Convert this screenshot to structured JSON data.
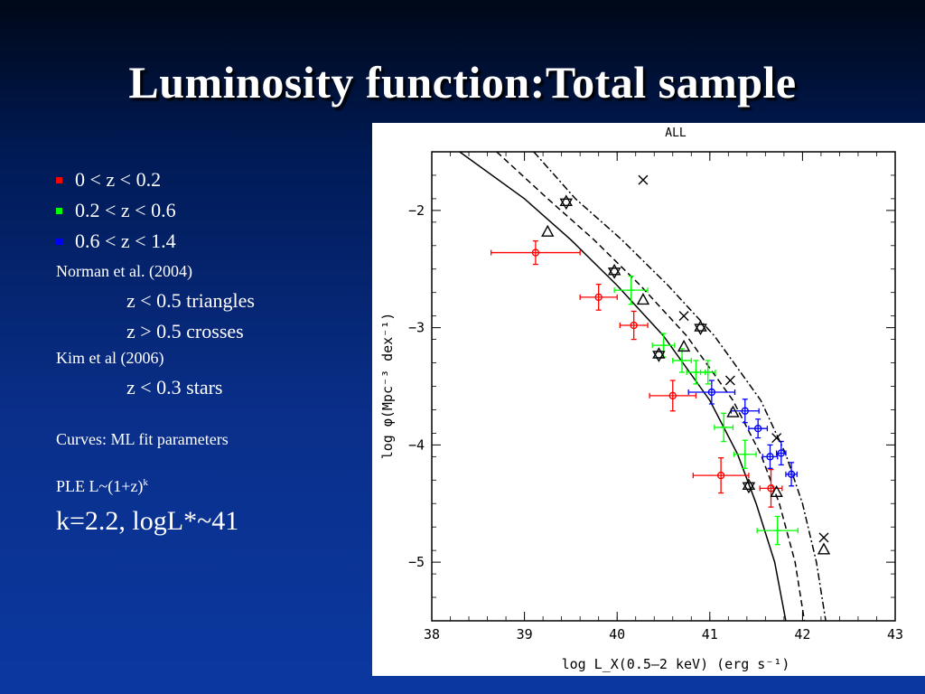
{
  "slide": {
    "title": "Luminosity function:Total sample",
    "bullets": [
      {
        "label": "0 < z < 0.2",
        "color": "#ff0000"
      },
      {
        "label": "0.2 < z < 0.6",
        "color": "#00ff00"
      },
      {
        "label": "0.6 < z < 1.4",
        "color": "#0000ff"
      }
    ],
    "norman_ref": "Norman et al.  (2004)",
    "norman_triangles": "z < 0.5 triangles",
    "norman_crosses": "z > 0.5 crosses",
    "kim_ref": "Kim et al (2006)",
    "kim_stars": "z < 0.3 stars",
    "curves_note": "Curves: ML fit parameters",
    "ple_label": "PLE  L~(1+z)",
    "ple_exponent": "k",
    "fit_result": "k=2.2, logL*~41"
  },
  "chart_data": {
    "type": "scatter",
    "title": "ALL",
    "xlabel": "log L_X(0.5–2 keV) (erg s⁻¹)",
    "ylabel": "log φ(Mpc⁻³ dex⁻¹)",
    "xlim": [
      38,
      43
    ],
    "ylim": [
      -5.5,
      -1.5
    ],
    "x_ticks": [
      "38",
      "39",
      "40",
      "41",
      "42",
      "43"
    ],
    "y_ticks": [
      "−2",
      "−3",
      "−4",
      "−5"
    ],
    "y_tick_values": [
      -2,
      -3,
      -4,
      -5
    ],
    "x_tick_values": [
      38,
      39,
      40,
      41,
      42,
      43
    ],
    "colors": {
      "low_z": "#ff0000",
      "mid_z": "#00ff00",
      "high_z": "#0000ff",
      "ref": "#000000"
    },
    "series": [
      {
        "name": "0 < z < 0.2",
        "color": "#ff0000",
        "marker": "circle",
        "points": [
          {
            "x": 39.12,
            "y": -2.36,
            "xerr": 0.48,
            "yerr": 0.1
          },
          {
            "x": 39.8,
            "y": -2.74,
            "xerr": 0.2,
            "yerr": 0.11
          },
          {
            "x": 40.18,
            "y": -2.98,
            "xerr": 0.15,
            "yerr": 0.12
          },
          {
            "x": 40.6,
            "y": -3.58,
            "xerr": 0.25,
            "yerr": 0.13
          },
          {
            "x": 41.12,
            "y": -4.26,
            "xerr": 0.3,
            "yerr": 0.15
          },
          {
            "x": 41.66,
            "y": -4.37,
            "xerr": 0.12,
            "yerr": 0.16
          }
        ]
      },
      {
        "name": "0.2 < z < 0.6",
        "color": "#00ff00",
        "marker": "cross",
        "points": [
          {
            "x": 40.15,
            "y": -2.68,
            "xerr": 0.18,
            "yerr": 0.12
          },
          {
            "x": 40.5,
            "y": -3.15,
            "xerr": 0.12,
            "yerr": 0.1
          },
          {
            "x": 40.7,
            "y": -3.28,
            "xerr": 0.1,
            "yerr": 0.1
          },
          {
            "x": 40.85,
            "y": -3.38,
            "xerr": 0.1,
            "yerr": 0.1
          },
          {
            "x": 40.98,
            "y": -3.38,
            "xerr": 0.08,
            "yerr": 0.1
          },
          {
            "x": 41.15,
            "y": -3.85,
            "xerr": 0.1,
            "yerr": 0.12
          },
          {
            "x": 41.38,
            "y": -4.08,
            "xerr": 0.12,
            "yerr": 0.12
          },
          {
            "x": 41.73,
            "y": -4.73,
            "xerr": 0.22,
            "yerr": 0.12
          }
        ]
      },
      {
        "name": "0.6 < z < 1.4",
        "color": "#0000ff",
        "marker": "circle",
        "points": [
          {
            "x": 41.02,
            "y": -3.55,
            "xerr": 0.25,
            "yerr": 0.1
          },
          {
            "x": 41.38,
            "y": -3.71,
            "xerr": 0.15,
            "yerr": 0.1
          },
          {
            "x": 41.52,
            "y": -3.86,
            "xerr": 0.1,
            "yerr": 0.08
          },
          {
            "x": 41.65,
            "y": -4.1,
            "xerr": 0.08,
            "yerr": 0.1
          },
          {
            "x": 41.77,
            "y": -4.07,
            "xerr": 0.05,
            "yerr": 0.1
          },
          {
            "x": 41.88,
            "y": -4.25,
            "xerr": 0.06,
            "yerr": 0.1
          }
        ]
      },
      {
        "name": "Norman et al. z < 0.5",
        "color": "#000000",
        "marker": "triangle",
        "points": [
          {
            "x": 39.25,
            "y": -2.18
          },
          {
            "x": 40.28,
            "y": -2.76
          },
          {
            "x": 40.72,
            "y": -3.16
          },
          {
            "x": 41.25,
            "y": -3.72
          },
          {
            "x": 41.72,
            "y": -4.4
          },
          {
            "x": 42.23,
            "y": -4.89
          }
        ]
      },
      {
        "name": "Norman et al. z > 0.5",
        "color": "#000000",
        "marker": "x",
        "points": [
          {
            "x": 40.28,
            "y": -1.74
          },
          {
            "x": 40.72,
            "y": -2.9
          },
          {
            "x": 41.22,
            "y": -3.45
          },
          {
            "x": 41.72,
            "y": -3.94
          },
          {
            "x": 42.23,
            "y": -4.79
          }
        ]
      },
      {
        "name": "Kim et al. z < 0.3",
        "color": "#000000",
        "marker": "star",
        "points": [
          {
            "x": 39.45,
            "y": -1.93
          },
          {
            "x": 39.97,
            "y": -2.52
          },
          {
            "x": 40.45,
            "y": -3.23
          },
          {
            "x": 40.9,
            "y": -3.0
          },
          {
            "x": 41.42,
            "y": -4.35
          }
        ]
      }
    ],
    "curves": [
      {
        "style": "solid",
        "points": [
          [
            38.3,
            -1.5
          ],
          [
            39.0,
            -1.9
          ],
          [
            39.5,
            -2.25
          ],
          [
            40.0,
            -2.64
          ],
          [
            40.5,
            -3.07
          ],
          [
            41.0,
            -3.62
          ],
          [
            41.3,
            -4.08
          ],
          [
            41.5,
            -4.5
          ],
          [
            41.7,
            -5.0
          ],
          [
            41.82,
            -5.5
          ]
        ]
      },
      {
        "style": "dashed",
        "points": [
          [
            38.7,
            -1.5
          ],
          [
            39.25,
            -1.9
          ],
          [
            39.75,
            -2.25
          ],
          [
            40.25,
            -2.64
          ],
          [
            40.75,
            -3.07
          ],
          [
            41.25,
            -3.62
          ],
          [
            41.55,
            -4.08
          ],
          [
            41.75,
            -4.5
          ],
          [
            41.92,
            -5.0
          ],
          [
            42.02,
            -5.5
          ]
        ]
      },
      {
        "style": "dashdot",
        "points": [
          [
            39.1,
            -1.5
          ],
          [
            39.55,
            -1.9
          ],
          [
            40.05,
            -2.25
          ],
          [
            40.55,
            -2.64
          ],
          [
            41.05,
            -3.07
          ],
          [
            41.55,
            -3.62
          ],
          [
            41.82,
            -4.08
          ],
          [
            42.0,
            -4.5
          ],
          [
            42.15,
            -5.0
          ],
          [
            42.25,
            -5.5
          ]
        ]
      }
    ]
  }
}
